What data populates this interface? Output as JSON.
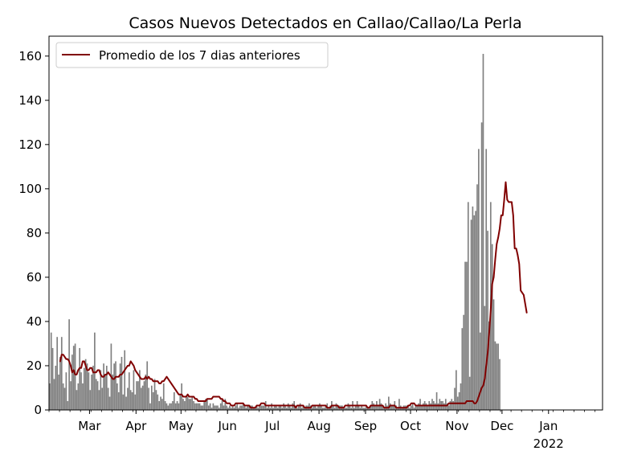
{
  "chart_data": {
    "type": "bar",
    "title": "Casos Nuevos Detectados en Callao/Callao/La Perla",
    "xlabel": "",
    "ylabel": "",
    "x_start": "2021-02-02",
    "x_end": "2022-02-06",
    "ylim": [
      0,
      169
    ],
    "y_ticks": [
      0,
      20,
      40,
      60,
      80,
      100,
      120,
      140,
      160
    ],
    "y_tick_labels": [
      "0",
      "20",
      "40",
      "60",
      "80",
      "100",
      "120",
      "140",
      "160"
    ],
    "x_ticks": [
      {
        "date": "2021-03-01",
        "label": "Mar"
      },
      {
        "date": "2021-04-01",
        "label": "Apr"
      },
      {
        "date": "2021-05-01",
        "label": "May"
      },
      {
        "date": "2021-06-01",
        "label": "Jun"
      },
      {
        "date": "2021-07-01",
        "label": "Jul"
      },
      {
        "date": "2021-08-01",
        "label": "Aug"
      },
      {
        "date": "2021-09-01",
        "label": "Sep"
      },
      {
        "date": "2021-10-01",
        "label": "Oct"
      },
      {
        "date": "2021-11-01",
        "label": "Nov"
      },
      {
        "date": "2021-12-01",
        "label": "Dec"
      },
      {
        "date": "2022-01-01",
        "label": "Jan",
        "sublabel": "2022"
      }
    ],
    "grid": false,
    "legend": {
      "position": "upper-left",
      "entries": [
        "Promedio de los 7 dias anteriores"
      ]
    },
    "series": [
      {
        "name": "",
        "type": "bar",
        "color": "#808080",
        "start_date": "2021-02-02",
        "values": [
          12,
          35,
          28,
          14,
          20,
          33,
          16,
          24,
          33,
          12,
          10,
          17,
          4,
          41,
          13,
          25,
          29,
          30,
          9,
          12,
          28,
          17,
          12,
          19,
          23,
          21,
          17,
          9,
          16,
          20,
          35,
          14,
          13,
          9,
          18,
          10,
          21,
          16,
          20,
          10,
          6,
          30,
          16,
          21,
          22,
          12,
          8,
          21,
          24,
          7,
          27,
          6,
          10,
          17,
          9,
          8,
          18,
          7,
          13,
          13,
          18,
          10,
          11,
          13,
          16,
          22,
          10,
          3,
          11,
          8,
          14,
          9,
          7,
          4,
          6,
          5,
          12,
          4,
          3,
          2,
          3,
          3,
          4,
          8,
          3,
          4,
          3,
          7,
          12,
          5,
          4,
          6,
          6,
          5,
          5,
          6,
          4,
          3,
          3,
          3,
          3,
          2,
          2,
          4,
          5,
          5,
          2,
          3,
          1,
          3,
          2,
          2,
          2,
          1,
          3,
          5,
          2,
          5,
          2,
          1,
          2,
          1,
          2,
          1,
          2,
          3,
          1,
          2,
          2,
          3,
          2,
          1,
          2,
          2,
          2,
          2,
          1,
          1,
          2,
          1,
          2,
          2,
          2,
          2,
          4,
          1,
          2,
          1,
          3,
          1,
          2,
          2,
          1,
          2,
          2,
          1,
          3,
          2,
          1,
          3,
          2,
          1,
          3,
          4,
          2,
          1,
          2,
          3,
          1,
          2,
          1,
          2,
          2,
          3,
          2,
          1,
          2,
          2,
          1,
          2,
          3,
          2,
          1,
          1,
          2,
          3,
          1,
          2,
          4,
          2,
          1,
          3,
          2,
          2,
          2,
          2,
          1,
          1,
          1,
          3,
          2,
          1,
          4,
          1,
          2,
          4,
          2,
          1,
          2,
          1,
          1,
          2,
          1,
          1,
          2,
          4,
          3,
          2,
          4,
          2,
          5,
          3,
          2,
          1,
          3,
          2,
          6,
          3,
          2,
          2,
          4,
          2,
          1,
          5,
          2,
          1,
          2,
          2,
          2,
          2,
          1,
          2,
          3,
          1,
          2,
          2,
          3,
          5,
          2,
          3,
          4,
          3,
          2,
          4,
          3,
          5,
          4,
          3,
          8,
          3,
          5,
          4,
          4,
          3,
          5,
          3,
          2,
          4,
          5,
          4,
          10,
          18,
          6,
          8,
          12,
          37,
          43,
          67,
          67,
          94,
          15,
          86,
          92,
          88,
          90,
          102,
          118,
          35,
          130,
          161,
          47,
          118,
          81,
          40,
          94,
          75,
          50,
          31,
          30,
          30,
          23
        ]
      },
      {
        "name": "Promedio de los 7 dias anteriores",
        "type": "line",
        "color": "#800000",
        "start_date": "2021-02-09",
        "values": [
          22,
          25,
          25,
          24,
          23,
          23,
          22,
          20,
          17,
          18,
          16,
          16,
          18,
          19,
          19,
          22,
          22,
          20,
          18,
          18,
          19,
          19,
          17,
          17,
          17,
          18,
          18,
          16,
          15,
          15,
          16,
          16,
          17,
          16,
          15,
          14,
          14,
          15,
          15,
          15,
          16,
          16,
          17,
          18,
          19,
          20,
          20,
          22,
          21,
          20,
          18,
          17,
          16,
          15,
          14,
          14,
          14,
          15,
          14,
          15,
          14,
          14,
          13,
          13,
          13,
          13,
          12,
          12,
          13,
          13,
          14,
          15,
          14,
          13,
          12,
          11,
          10,
          9,
          8,
          7,
          7,
          7,
          6,
          6,
          6,
          7,
          6,
          6,
          6,
          6,
          5,
          5,
          4,
          4,
          4,
          4,
          4,
          4,
          5,
          5,
          5,
          5,
          6,
          6,
          6,
          6,
          6,
          5,
          5,
          4,
          4,
          3,
          3,
          3,
          2,
          2,
          2,
          3,
          3,
          3,
          3,
          3,
          3,
          2,
          2,
          2,
          2,
          1,
          1,
          1,
          1,
          2,
          2,
          2,
          3,
          3,
          3,
          2,
          2,
          2,
          2,
          2,
          2,
          2,
          2,
          2,
          2,
          2,
          2,
          2,
          2,
          2,
          2,
          2,
          2,
          2,
          2,
          1,
          2,
          2,
          2,
          2,
          2,
          1,
          1,
          1,
          1,
          1,
          2,
          2,
          2,
          2,
          2,
          2,
          2,
          2,
          2,
          2,
          1,
          1,
          1,
          2,
          2,
          2,
          2,
          2,
          1,
          1,
          1,
          1,
          2,
          2,
          2,
          2,
          2,
          2,
          2,
          2,
          2,
          2,
          2,
          2,
          2,
          2,
          2,
          1,
          1,
          2,
          2,
          2,
          2,
          2,
          2,
          2,
          2,
          2,
          1,
          1,
          1,
          1,
          2,
          2,
          2,
          2,
          1,
          1,
          1,
          1,
          1,
          1,
          1,
          1,
          2,
          2,
          3,
          3,
          3,
          2,
          2,
          2,
          2,
          2,
          2,
          2,
          2,
          2,
          2,
          2,
          2,
          2,
          2,
          2,
          2,
          2,
          2,
          2,
          2,
          2,
          2,
          3,
          3,
          3,
          3,
          3,
          3,
          3,
          3,
          3,
          3,
          3,
          3,
          4,
          4,
          4,
          4,
          4,
          3,
          3,
          4,
          6,
          8,
          10,
          11,
          14,
          20,
          26,
          35,
          45,
          57,
          60,
          68,
          75,
          78,
          82,
          88,
          88,
          95,
          103,
          95,
          94,
          94,
          94,
          88,
          73,
          73,
          70,
          66,
          54,
          53,
          52,
          48,
          44
        ]
      }
    ]
  }
}
